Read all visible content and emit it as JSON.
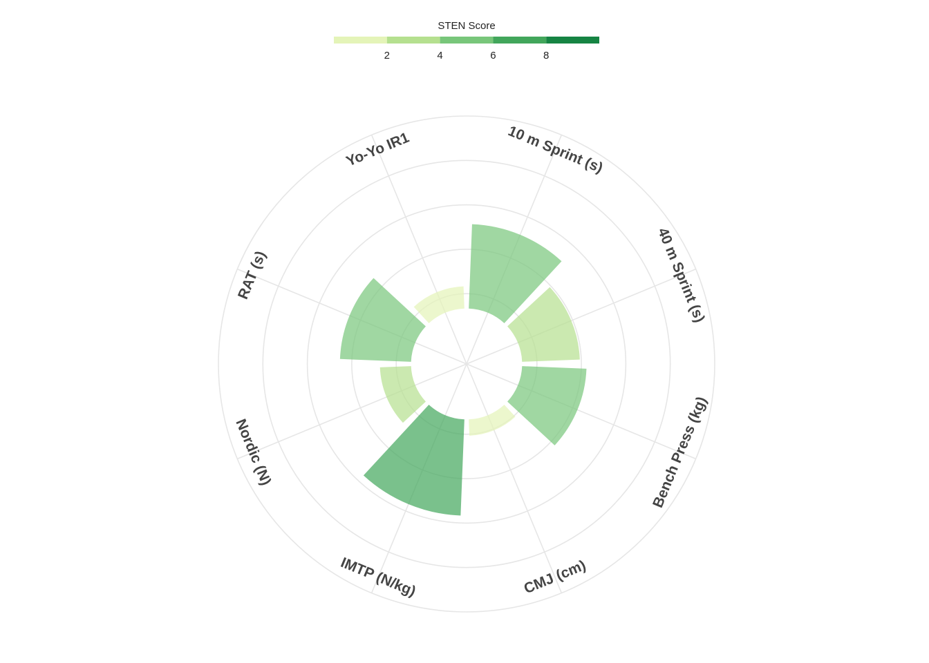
{
  "chart_data": {
    "type": "polar_bar",
    "legend_title": "STEN Score",
    "categories": [
      "10 m Sprint (s)",
      "40 m Sprint (s)",
      "Bench Press (kg)",
      "CMJ (cm)",
      "IMTP (N/kg)",
      "Nordic (N)",
      "RAT (s)",
      "Yo-Yo IR1"
    ],
    "values": [
      5.7,
      3.9,
      4.35,
      1.1,
      6.5,
      2.1,
      4.8,
      1.5
    ],
    "ylim": [
      -3.75,
      13
    ],
    "yticks": [
      1,
      4,
      7,
      10,
      13
    ],
    "grid": true,
    "color_scale": {
      "lim": [
        0,
        10
      ],
      "breaks": [
        0,
        2,
        4,
        6,
        8,
        10
      ],
      "colors": [
        "#e4f4b8",
        "#b5e08f",
        "#78c67a",
        "#42a65b",
        "#168443"
      ],
      "ticks": [
        2,
        4,
        6,
        8
      ]
    },
    "bar_opacity": 0.7
  }
}
